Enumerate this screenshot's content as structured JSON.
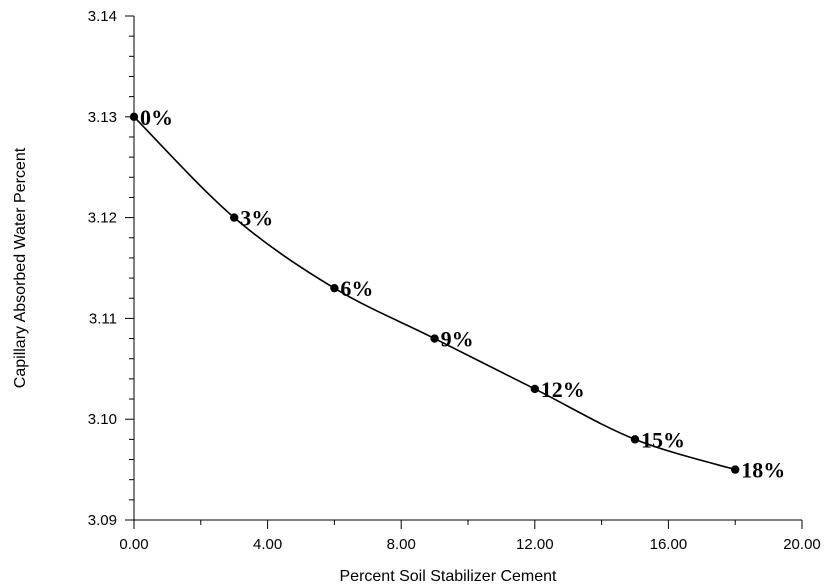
{
  "chart_data": {
    "type": "line",
    "xlabel": "Percent Soil Stabilizer Cement",
    "ylabel": "Capillary Absorbed Water Percent",
    "xlim": [
      0,
      20
    ],
    "ylim": [
      3.09,
      3.14
    ],
    "x_ticks": [
      "0.00",
      "4.00",
      "8.00",
      "12.00",
      "16.00",
      "20.00"
    ],
    "y_ticks": [
      "3.09",
      "3.10",
      "3.11",
      "3.12",
      "3.13",
      "3.14"
    ],
    "x_minor_step": 2,
    "y_minor_step": 0.002,
    "grid": false,
    "series": [
      {
        "x": [
          0,
          3,
          6,
          9,
          12,
          15,
          18
        ],
        "y": [
          3.13,
          3.12,
          3.113,
          3.108,
          3.103,
          3.098,
          3.095
        ],
        "labels": [
          "0%",
          "3%",
          "6%",
          "9%",
          "12%",
          "15%",
          "18%"
        ],
        "color": "#000000"
      }
    ]
  }
}
